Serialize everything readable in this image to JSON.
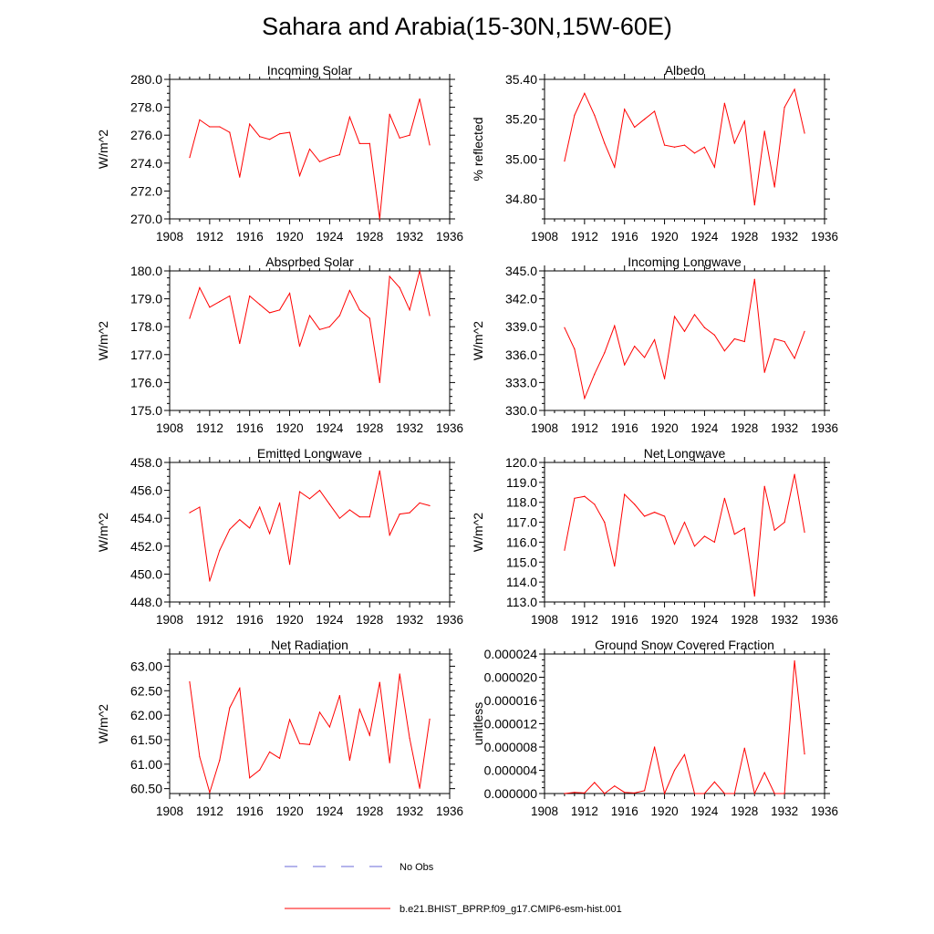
{
  "title": "Sahara and Arabia(15-30N,15W-60E)",
  "legend": [
    {
      "label": "No Obs",
      "color": "#6a6ad8",
      "dash": true
    },
    {
      "label": "b.e21.BHIST_BPRP.f09_g17.CMIP6-esm-hist.001",
      "color": "#ff0000",
      "dash": false
    }
  ],
  "series_color": "#ff0000",
  "chart_data": [
    {
      "type": "line",
      "title": "Incoming Solar",
      "ylabel": "W/m^2",
      "xlim": [
        1908,
        1936
      ],
      "ylim": [
        270,
        280
      ],
      "xticks": [
        1908,
        1912,
        1916,
        1920,
        1924,
        1928,
        1932,
        1936
      ],
      "yticks": [
        "270.0",
        "272.0",
        "274.0",
        "276.0",
        "278.0",
        "280.0"
      ],
      "x": [
        1910,
        1911,
        1912,
        1913,
        1914,
        1915,
        1916,
        1917,
        1918,
        1919,
        1920,
        1921,
        1922,
        1923,
        1924,
        1925,
        1926,
        1927,
        1928,
        1929,
        1930,
        1931,
        1932,
        1933,
        1934
      ],
      "values": [
        274.4,
        277.1,
        276.6,
        276.6,
        276.2,
        273.0,
        276.8,
        275.9,
        275.7,
        276.1,
        276.2,
        273.1,
        275.0,
        274.1,
        274.4,
        274.6,
        277.3,
        275.4,
        275.4,
        270.0,
        277.5,
        275.8,
        276.0,
        278.6,
        275.3
      ]
    },
    {
      "type": "line",
      "title": "Albedo",
      "ylabel": "% reflected",
      "xlim": [
        1908,
        1936
      ],
      "ylim": [
        34.7,
        35.4
      ],
      "xticks": [
        1908,
        1912,
        1916,
        1920,
        1924,
        1928,
        1932,
        1936
      ],
      "yticks": [
        "34.80",
        "35.00",
        "35.20",
        "35.40"
      ],
      "x": [
        1910,
        1911,
        1912,
        1913,
        1914,
        1915,
        1916,
        1917,
        1918,
        1919,
        1920,
        1921,
        1922,
        1923,
        1924,
        1925,
        1926,
        1927,
        1928,
        1929,
        1930,
        1931,
        1932,
        1933,
        1934
      ],
      "values": [
        34.99,
        35.22,
        35.33,
        35.22,
        35.08,
        34.96,
        35.25,
        35.16,
        35.2,
        35.24,
        35.07,
        35.06,
        35.07,
        35.03,
        35.06,
        34.96,
        35.28,
        35.08,
        35.19,
        34.77,
        35.14,
        34.86,
        35.26,
        35.35,
        35.13
      ]
    },
    {
      "type": "line",
      "title": "Absorbed Solar",
      "ylabel": "W/m^2",
      "xlim": [
        1908,
        1936
      ],
      "ylim": [
        175,
        180
      ],
      "xticks": [
        1908,
        1912,
        1916,
        1920,
        1924,
        1928,
        1932,
        1936
      ],
      "yticks": [
        "175.0",
        "176.0",
        "177.0",
        "178.0",
        "179.0",
        "180.0"
      ],
      "x": [
        1910,
        1911,
        1912,
        1913,
        1914,
        1915,
        1916,
        1917,
        1918,
        1919,
        1920,
        1921,
        1922,
        1923,
        1924,
        1925,
        1926,
        1927,
        1928,
        1929,
        1930,
        1931,
        1932,
        1933,
        1934
      ],
      "values": [
        178.3,
        179.4,
        178.7,
        178.9,
        179.1,
        177.4,
        179.1,
        178.8,
        178.5,
        178.6,
        179.2,
        177.3,
        178.4,
        177.9,
        178.0,
        178.4,
        179.3,
        178.6,
        178.3,
        176.0,
        179.8,
        179.4,
        178.6,
        180.0,
        178.4
      ]
    },
    {
      "type": "line",
      "title": "Incoming Longwave",
      "ylabel": "W/m^2",
      "xlim": [
        1908,
        1936
      ],
      "ylim": [
        330,
        345
      ],
      "xticks": [
        1908,
        1912,
        1916,
        1920,
        1924,
        1928,
        1932,
        1936
      ],
      "yticks": [
        "330.0",
        "333.0",
        "336.0",
        "339.0",
        "342.0",
        "345.0"
      ],
      "x": [
        1910,
        1911,
        1912,
        1913,
        1914,
        1915,
        1916,
        1917,
        1918,
        1919,
        1920,
        1921,
        1922,
        1923,
        1924,
        1925,
        1926,
        1927,
        1928,
        1929,
        1930,
        1931,
        1932,
        1933,
        1934
      ],
      "values": [
        338.9,
        336.6,
        331.3,
        333.9,
        336.2,
        339.1,
        334.9,
        336.9,
        335.7,
        337.6,
        333.4,
        340.1,
        338.5,
        340.3,
        338.9,
        338.1,
        336.4,
        337.7,
        337.4,
        344.1,
        334.1,
        337.7,
        337.4,
        335.6,
        338.5
      ]
    },
    {
      "type": "line",
      "title": "Emitted Longwave",
      "ylabel": "W/m^2",
      "xlim": [
        1908,
        1936
      ],
      "ylim": [
        448,
        458
      ],
      "xticks": [
        1908,
        1912,
        1916,
        1920,
        1924,
        1928,
        1932,
        1936
      ],
      "yticks": [
        "448.0",
        "450.0",
        "452.0",
        "454.0",
        "456.0",
        "458.0"
      ],
      "x": [
        1910,
        1911,
        1912,
        1913,
        1914,
        1915,
        1916,
        1917,
        1918,
        1919,
        1920,
        1921,
        1922,
        1923,
        1924,
        1925,
        1926,
        1927,
        1928,
        1929,
        1930,
        1931,
        1932,
        1933,
        1934
      ],
      "values": [
        454.4,
        454.8,
        449.5,
        451.7,
        453.2,
        453.9,
        453.3,
        454.8,
        452.9,
        455.1,
        450.7,
        455.9,
        455.4,
        456.0,
        455.0,
        454.0,
        454.6,
        454.1,
        454.1,
        457.4,
        452.8,
        454.3,
        454.4,
        455.1,
        454.9
      ]
    },
    {
      "type": "line",
      "title": "Net Longwave",
      "ylabel": "W/m^2",
      "xlim": [
        1908,
        1936
      ],
      "ylim": [
        113,
        120
      ],
      "xticks": [
        1908,
        1912,
        1916,
        1920,
        1924,
        1928,
        1932,
        1936
      ],
      "yticks": [
        "113.0",
        "114.0",
        "115.0",
        "116.0",
        "117.0",
        "118.0",
        "119.0",
        "120.0"
      ],
      "x": [
        1910,
        1911,
        1912,
        1913,
        1914,
        1915,
        1916,
        1917,
        1918,
        1919,
        1920,
        1921,
        1922,
        1923,
        1924,
        1925,
        1926,
        1927,
        1928,
        1929,
        1930,
        1931,
        1932,
        1933,
        1934
      ],
      "values": [
        115.6,
        118.2,
        118.3,
        117.9,
        117.0,
        114.8,
        118.4,
        117.9,
        117.3,
        117.5,
        117.3,
        115.9,
        117.0,
        115.8,
        116.3,
        116.0,
        118.2,
        116.4,
        116.7,
        113.3,
        118.8,
        116.6,
        117.0,
        119.4,
        116.5
      ]
    },
    {
      "type": "line",
      "title": "Net Radiation",
      "ylabel": "W/m^2",
      "xlim": [
        1908,
        1936
      ],
      "ylim": [
        60.4,
        63.25
      ],
      "xticks": [
        1908,
        1912,
        1916,
        1920,
        1924,
        1928,
        1932,
        1936
      ],
      "yticks": [
        "60.50",
        "61.00",
        "61.50",
        "62.00",
        "62.50",
        "63.00"
      ],
      "x": [
        1910,
        1911,
        1912,
        1913,
        1914,
        1915,
        1916,
        1917,
        1918,
        1919,
        1920,
        1921,
        1922,
        1923,
        1924,
        1925,
        1926,
        1927,
        1928,
        1929,
        1930,
        1931,
        1932,
        1933,
        1934
      ],
      "values": [
        62.68,
        61.15,
        60.42,
        61.08,
        62.15,
        62.55,
        60.72,
        60.88,
        61.25,
        61.12,
        61.91,
        61.42,
        61.4,
        62.06,
        61.76,
        62.4,
        61.08,
        62.12,
        61.59,
        62.67,
        61.03,
        62.84,
        61.53,
        60.51,
        61.92
      ]
    },
    {
      "type": "line",
      "title": "Ground Snow Covered Fraction",
      "ylabel": "unitless",
      "xlim": [
        1908,
        1936
      ],
      "ylim": [
        0,
        2.4e-05
      ],
      "xticks": [
        1908,
        1912,
        1916,
        1920,
        1924,
        1928,
        1932,
        1936
      ],
      "yticks": [
        "0.000000",
        "0.000004",
        "0.000008",
        "0.000012",
        "0.000016",
        "0.000020",
        "0.000024"
      ],
      "x": [
        1910,
        1911,
        1912,
        1913,
        1914,
        1915,
        1916,
        1917,
        1918,
        1919,
        1920,
        1921,
        1922,
        1923,
        1924,
        1925,
        1926,
        1927,
        1928,
        1929,
        1930,
        1931,
        1932,
        1933,
        1934
      ],
      "values": [
        0,
        2e-07,
        1e-07,
        1.9e-06,
        0,
        1.3e-06,
        2e-07,
        1e-07,
        5e-07,
        8e-06,
        0,
        4e-06,
        6.7e-06,
        0,
        0,
        2e-06,
        0,
        0,
        7.8e-06,
        0,
        3.6e-06,
        0,
        0,
        2.28e-05,
        6.8e-06
      ]
    }
  ]
}
